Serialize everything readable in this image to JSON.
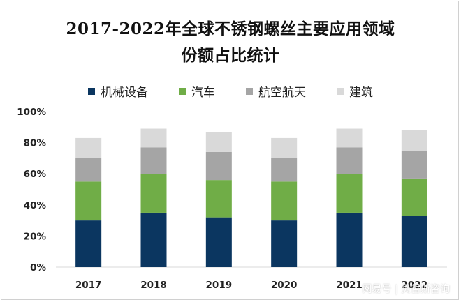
{
  "title_line1": "2017-2022年全球不锈钢螺丝主要应用领域",
  "title_line2": "份额占比统计",
  "watermark": "网易号 | 贝哲斯咨询",
  "colors": {
    "机械设备": "#0b3660",
    "汽车": "#70ad47",
    "航空航天": "#a5a5a5",
    "建筑": "#d9d9d9"
  },
  "chart_data": {
    "type": "bar",
    "stacked": true,
    "categories": [
      "2017",
      "2018",
      "2019",
      "2020",
      "2021",
      "2022"
    ],
    "series": [
      {
        "name": "机械设备",
        "values": [
          0.3,
          0.35,
          0.32,
          0.3,
          0.35,
          0.33
        ]
      },
      {
        "name": "汽车",
        "values": [
          0.25,
          0.25,
          0.24,
          0.25,
          0.25,
          0.24
        ]
      },
      {
        "name": "航空航天",
        "values": [
          0.15,
          0.17,
          0.18,
          0.15,
          0.17,
          0.18
        ]
      },
      {
        "name": "建筑",
        "values": [
          0.13,
          0.12,
          0.13,
          0.13,
          0.12,
          0.13
        ]
      }
    ],
    "ylim": [
      0,
      1
    ],
    "yticks": [
      "0%",
      "20%",
      "40%",
      "60%",
      "80%",
      "100%"
    ],
    "grid": false,
    "legend_position": "top"
  }
}
